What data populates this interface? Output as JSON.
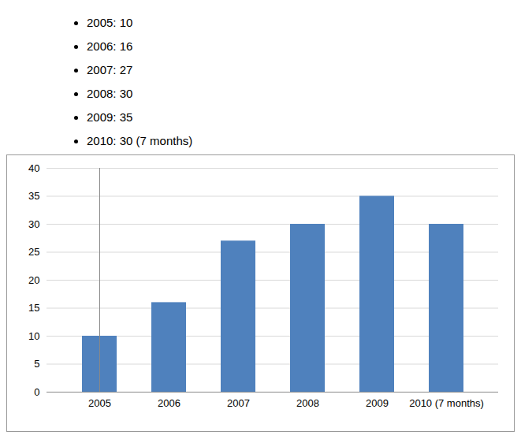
{
  "chart_data": {
    "type": "bar",
    "annotations": [
      "2005: 10",
      "2006: 16",
      "2007: 27",
      "2008: 30",
      "2009: 35",
      "2010: 30 (7 months)"
    ],
    "categories": [
      "2005",
      "2006",
      "2007",
      "2008",
      "2009",
      "2010 (7 months)"
    ],
    "values": [
      10,
      16,
      27,
      30,
      35,
      30
    ],
    "color": "#4f81bd",
    "ylim": [
      0,
      40
    ],
    "yticks": [
      0,
      5,
      10,
      15,
      20,
      25,
      30,
      35,
      40
    ],
    "grid": true
  }
}
